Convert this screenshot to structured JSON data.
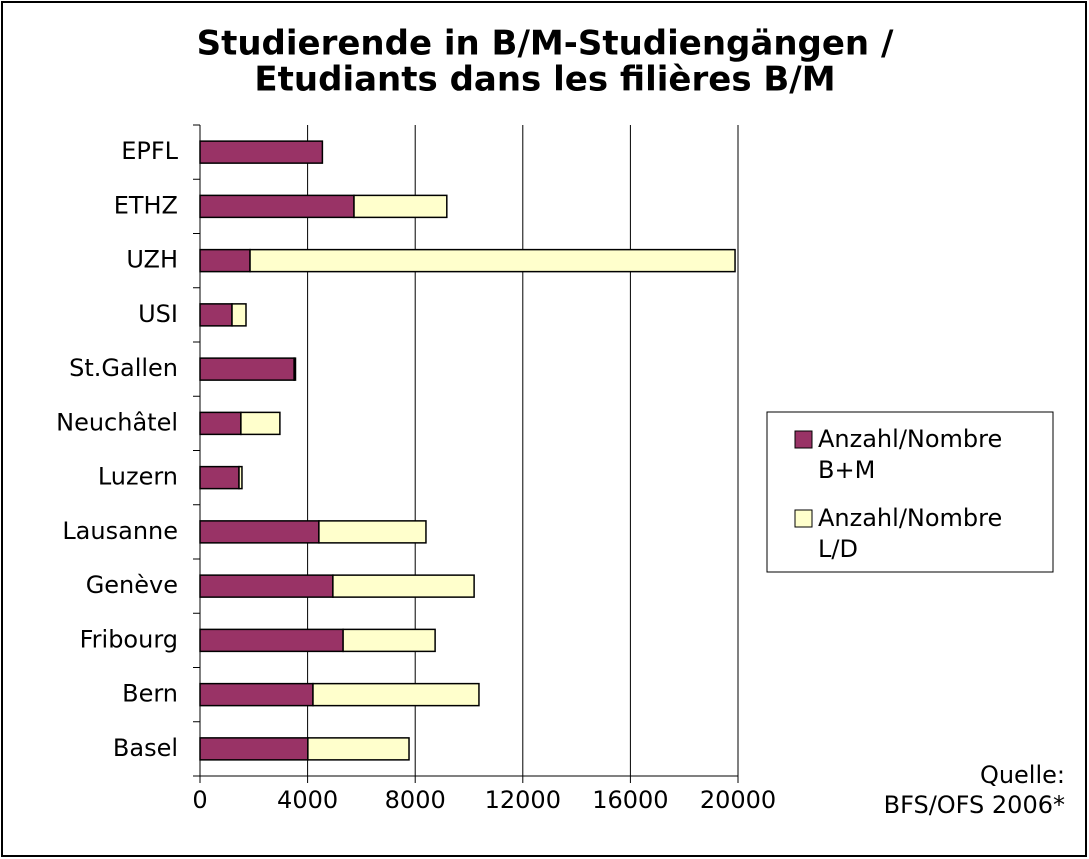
{
  "chart_data": {
    "type": "stacked_barh",
    "title": [
      "Studierende in B/M-Studiengängen /",
      "Etudiants dans les filières B/M"
    ],
    "categories": [
      "EPFL",
      "ETHZ",
      "UZH",
      "USI",
      "St.Gallen",
      "Neuchâtel",
      "Luzern",
      "Lausanne",
      "Genève",
      "Fribourg",
      "Bern",
      "Basel"
    ],
    "series": [
      {
        "name": "Anzahl/Nombre B+M",
        "color": "#993366",
        "values": [
          4550,
          5725,
          1860,
          1190,
          3500,
          1520,
          1450,
          4420,
          4940,
          5320,
          4200,
          4010
        ]
      },
      {
        "name": "Anzahl/Nombre L/D",
        "color": "#ffffcc",
        "values": [
          0,
          3450,
          18030,
          520,
          50,
          1450,
          110,
          3980,
          5250,
          3420,
          6170,
          3760
        ]
      }
    ],
    "xlim": [
      0,
      20000
    ],
    "xticks": [
      0,
      4000,
      8000,
      12000,
      16000,
      20000
    ],
    "grid": true,
    "legend": "right",
    "source": [
      "Quelle:",
      "BFS/OFS 2006*"
    ]
  }
}
